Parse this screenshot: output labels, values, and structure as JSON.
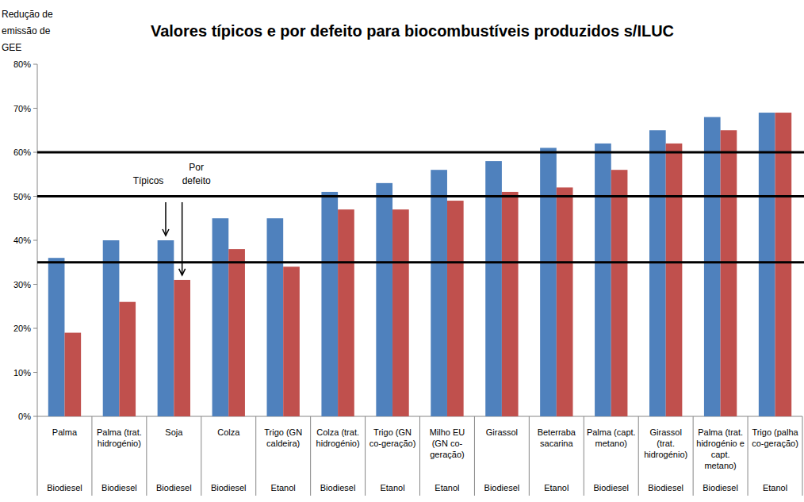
{
  "chart_data": {
    "type": "bar",
    "title": "Valores típicos e por defeito para biocombustíveis produzidos s/ILUC",
    "y_label": "Redução de emissão de GEE",
    "categories": [
      "Palma",
      "Palma (trat. hidrogénio)",
      "Soja",
      "Colza",
      "Trigo (GN caldeira)",
      "Colza (trat. hidrogénio)",
      "Trigo (GN co-geração)",
      "Milho EU (GN co-geração)",
      "Girassol",
      "Beterraba sacarina",
      "Palma (capt. metano)",
      "Girassol (trat. hidrogénio)",
      "Palma (trat. hidrogénio e capt. metano)",
      "Trigo (palha co-geração)"
    ],
    "fuel_types": [
      "Biodiesel",
      "Biodiesel",
      "Biodiesel",
      "Biodiesel",
      "Etanol",
      "Biodiesel",
      "Etanol",
      "Etanol",
      "Biodiesel",
      "Etanol",
      "Biodiesel",
      "Biodiesel",
      "Biodiesel",
      "Etanol"
    ],
    "series": [
      {
        "name": "Típicos",
        "color": "#4f81bd",
        "values": [
          36,
          40,
          40,
          45,
          45,
          51,
          53,
          56,
          58,
          61,
          62,
          65,
          68,
          69
        ]
      },
      {
        "name": "Por defeito",
        "color": "#c0504d",
        "values": [
          19,
          26,
          31,
          38,
          34,
          47,
          47,
          49,
          51,
          52,
          56,
          62,
          65,
          69
        ]
      }
    ],
    "reference_lines": [
      35,
      50,
      60
    ],
    "ylim": [
      0,
      80
    ],
    "yticks": [
      {
        "value": 0,
        "label": "0%"
      },
      {
        "value": 10,
        "label": "10%"
      },
      {
        "value": 20,
        "label": "20%"
      },
      {
        "value": 30,
        "label": "30%"
      },
      {
        "value": 40,
        "label": "40%"
      },
      {
        "value": 50,
        "label": "50%"
      },
      {
        "value": 60,
        "label": "60%"
      },
      {
        "value": 70,
        "label": "70%"
      },
      {
        "value": 80,
        "label": "80%"
      }
    ],
    "grid": false
  }
}
